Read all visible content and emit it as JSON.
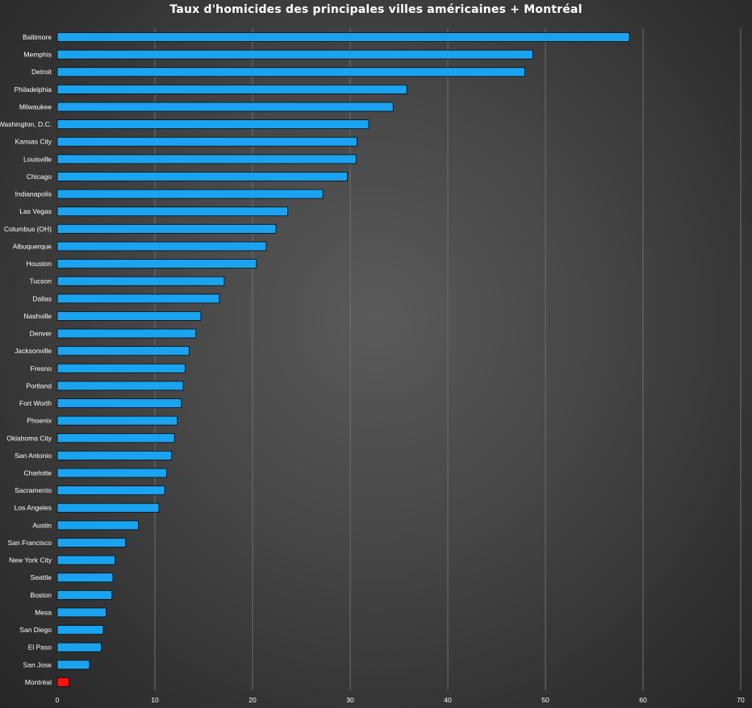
{
  "chart_data": {
    "type": "bar",
    "orientation": "horizontal",
    "title": "Taux d'homicides des principales villes américaines + Montréal",
    "xlabel": "",
    "ylabel": "",
    "xlim": [
      0,
      70
    ],
    "xticks": [
      0,
      10,
      20,
      30,
      40,
      50,
      60,
      70
    ],
    "grid": true,
    "legend": "none",
    "colors": {
      "default": "#1aa3f0",
      "highlight": "#ff1010"
    },
    "categories": [
      "Baltimore",
      "Memphis",
      "Detroit",
      "Philadelphia",
      "Milwaukee",
      "Washington, D.C.",
      "Kansas City",
      "Louisville",
      "Chicago",
      "Indianapolis",
      "Las Vegas",
      "Columbus (OH)",
      "Albuquerque",
      "Houston",
      "Tucson",
      "Dallas",
      "Nashville",
      "Denver",
      "Jacksonville",
      "Fresno",
      "Portland",
      "Fort Worth",
      "Phoenix",
      "Oklahoma City",
      "San Antonio",
      "Charlotte",
      "Sacramento",
      "Los Angeles",
      "Austin",
      "San Francisco",
      "New York City",
      "Seattle",
      "Boston",
      "Mesa",
      "San Diego",
      "El Paso",
      "San Jose",
      "Montréal"
    ],
    "values": [
      58.6,
      48.7,
      47.9,
      35.8,
      34.4,
      31.9,
      30.7,
      30.6,
      29.7,
      27.2,
      23.6,
      22.4,
      21.4,
      20.4,
      17.1,
      16.6,
      14.7,
      14.2,
      13.5,
      13.1,
      12.9,
      12.7,
      12.3,
      12.0,
      11.7,
      11.2,
      11.0,
      10.4,
      8.3,
      7.0,
      5.9,
      5.7,
      5.6,
      5.0,
      4.7,
      4.5,
      3.3,
      1.2
    ],
    "highlight": [
      "Montréal"
    ]
  }
}
